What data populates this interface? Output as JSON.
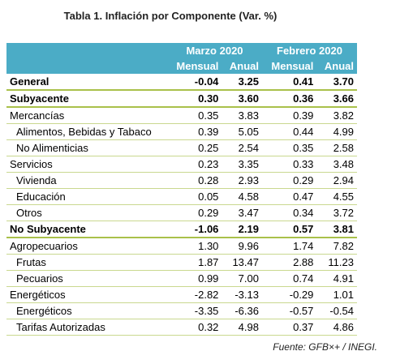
{
  "title": "Tabla 1. Inflación por Componente (Var. %)",
  "table": {
    "groups": [
      "Marzo 2020",
      "Febrero 2020"
    ],
    "subheaders": [
      "Mensual",
      "Anual",
      "Mensual",
      "Anual"
    ],
    "rows": [
      {
        "label": "General",
        "bold": true,
        "indent": false,
        "cells": [
          "-0.04",
          "3.25",
          "0.41",
          "3.70"
        ]
      },
      {
        "label": "Subyacente",
        "bold": true,
        "indent": false,
        "cells": [
          "0.30",
          "3.60",
          "0.36",
          "3.66"
        ]
      },
      {
        "label": "Mercancías",
        "bold": false,
        "indent": false,
        "cells": [
          "0.35",
          "3.83",
          "0.39",
          "3.82"
        ]
      },
      {
        "label": "Alimentos, Bebidas y Tabaco",
        "bold": false,
        "indent": true,
        "cells": [
          "0.39",
          "5.05",
          "0.44",
          "4.99"
        ]
      },
      {
        "label": "No Alimenticias",
        "bold": false,
        "indent": true,
        "cells": [
          "0.25",
          "2.54",
          "0.35",
          "2.58"
        ]
      },
      {
        "label": "Servicios",
        "bold": false,
        "indent": false,
        "cells": [
          "0.23",
          "3.35",
          "0.33",
          "3.48"
        ]
      },
      {
        "label": "Vivienda",
        "bold": false,
        "indent": true,
        "cells": [
          "0.28",
          "2.93",
          "0.29",
          "2.94"
        ]
      },
      {
        "label": "Educación",
        "bold": false,
        "indent": true,
        "cells": [
          "0.05",
          "4.58",
          "0.47",
          "4.55"
        ]
      },
      {
        "label": "Otros",
        "bold": false,
        "indent": true,
        "cells": [
          "0.29",
          "3.47",
          "0.34",
          "3.72"
        ]
      },
      {
        "label": "No Subyacente",
        "bold": true,
        "indent": false,
        "cells": [
          "-1.06",
          "2.19",
          "0.57",
          "3.81"
        ]
      },
      {
        "label": "Agropecuarios",
        "bold": false,
        "indent": false,
        "cells": [
          "1.30",
          "9.96",
          "1.74",
          "7.82"
        ]
      },
      {
        "label": "Frutas",
        "bold": false,
        "indent": true,
        "cells": [
          "1.87",
          "13.47",
          "2.88",
          "11.23"
        ]
      },
      {
        "label": "Pecuarios",
        "bold": false,
        "indent": true,
        "cells": [
          "0.99",
          "7.00",
          "0.74",
          "4.91"
        ]
      },
      {
        "label": "Energéticos",
        "bold": false,
        "indent": false,
        "cells": [
          "-2.82",
          "-3.13",
          "-0.29",
          "1.01"
        ]
      },
      {
        "label": "Energéticos",
        "bold": false,
        "indent": true,
        "cells": [
          "-3.35",
          "-6.36",
          "-0.57",
          "-0.54"
        ]
      },
      {
        "label": "Tarifas Autorizadas",
        "bold": false,
        "indent": true,
        "cells": [
          "0.32",
          "4.98",
          "0.37",
          "4.86"
        ]
      }
    ]
  },
  "source": "Fuente: GFB×+ /  INEGI."
}
